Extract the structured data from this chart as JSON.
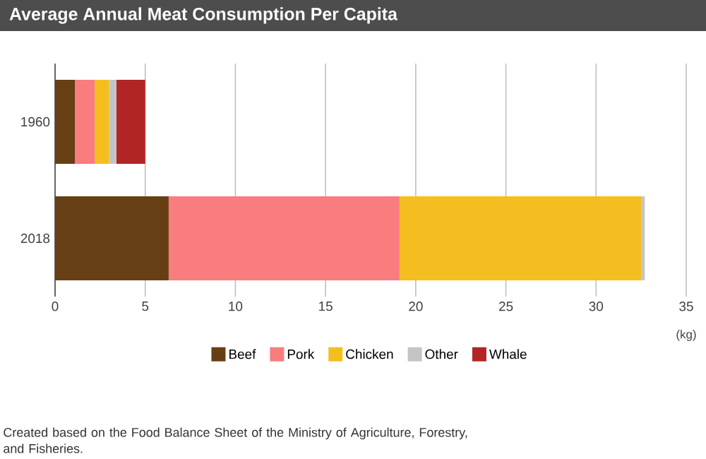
{
  "chart_data": {
    "type": "bar",
    "orientation": "horizontal",
    "stacked": true,
    "title": "Average Annual Meat Consumption Per Capita",
    "xlabel": "(kg)",
    "categories": [
      "1960",
      "2018"
    ],
    "series": [
      {
        "name": "Beef",
        "color": "#663f14",
        "values": [
          1.1,
          6.3
        ]
      },
      {
        "name": "Pork",
        "color": "#f97c7e",
        "values": [
          1.1,
          12.8
        ]
      },
      {
        "name": "Chicken",
        "color": "#f5be20",
        "values": [
          0.8,
          13.4
        ]
      },
      {
        "name": "Other",
        "color": "#c4c4c4",
        "values": [
          0.4,
          0.2
        ]
      },
      {
        "name": "Whale",
        "color": "#b12525",
        "values": [
          1.6,
          0
        ]
      }
    ],
    "xlim": [
      0,
      35
    ],
    "xticks": [
      0,
      5,
      10,
      15,
      20,
      25,
      30,
      35
    ],
    "grid": "x",
    "legend": "bottom",
    "annotations": [
      "Created based on the Food Balance Sheet of the Ministry of Agriculture, Forestry, and Fisheries."
    ]
  }
}
